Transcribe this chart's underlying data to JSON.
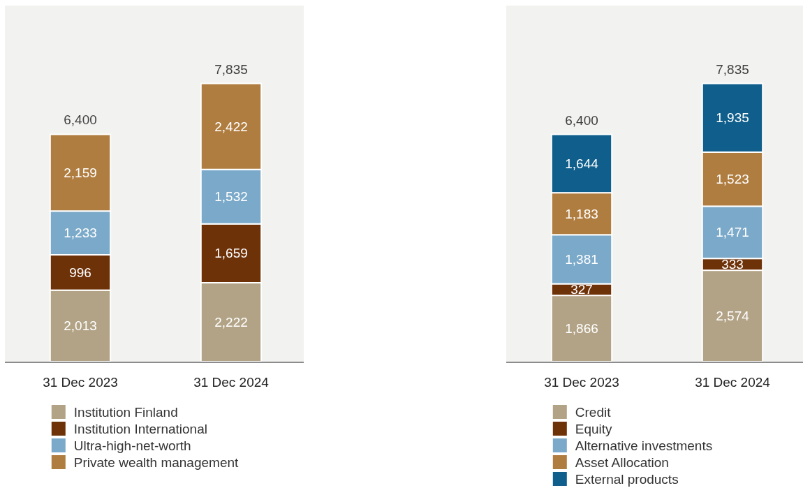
{
  "chart_data": [
    {
      "type": "bar",
      "stacked": true,
      "legend": "bottom",
      "categories": [
        "31 Dec 2023",
        "31 Dec 2024"
      ],
      "totals": [
        "6,400",
        "7,835"
      ],
      "series": [
        {
          "name": "Institution Finland",
          "color": "#b2a386",
          "values": [
            2013,
            2222
          ],
          "value_labels": [
            "2,013",
            "2,222"
          ]
        },
        {
          "name": "Institution International",
          "color": "#6e3209",
          "values": [
            996,
            1659
          ],
          "value_labels": [
            "996",
            "1,659"
          ]
        },
        {
          "name": "Ultra-high-net-worth",
          "color": "#7aa9c9",
          "values": [
            1233,
            1532
          ],
          "value_labels": [
            "1,233",
            "1,532"
          ]
        },
        {
          "name": "Private wealth management",
          "color": "#b07d40",
          "values": [
            2159,
            2422
          ],
          "value_labels": [
            "2,159",
            "2,422"
          ]
        }
      ]
    },
    {
      "type": "bar",
      "stacked": true,
      "legend": "bottom",
      "categories": [
        "31 Dec 2023",
        "31 Dec 2024"
      ],
      "totals": [
        "6,400",
        "7,835"
      ],
      "series": [
        {
          "name": "Credit",
          "color": "#b2a386",
          "values": [
            1866,
            2574
          ],
          "value_labels": [
            "1,866",
            "2,574"
          ]
        },
        {
          "name": "Equity",
          "color": "#6e3209",
          "values": [
            327,
            333
          ],
          "value_labels": [
            "327",
            "333"
          ]
        },
        {
          "name": "Alternative investments",
          "color": "#7aa9c9",
          "values": [
            1381,
            1471
          ],
          "value_labels": [
            "1,381",
            "1,471"
          ]
        },
        {
          "name": "Asset Allocation",
          "color": "#b07d40",
          "values": [
            1183,
            1523
          ],
          "value_labels": [
            "1,183",
            "1,523"
          ]
        },
        {
          "name": "External products",
          "color": "#0f5e8c",
          "values": [
            1644,
            1935
          ],
          "value_labels": [
            "1,644",
            "1,935"
          ]
        }
      ]
    }
  ]
}
